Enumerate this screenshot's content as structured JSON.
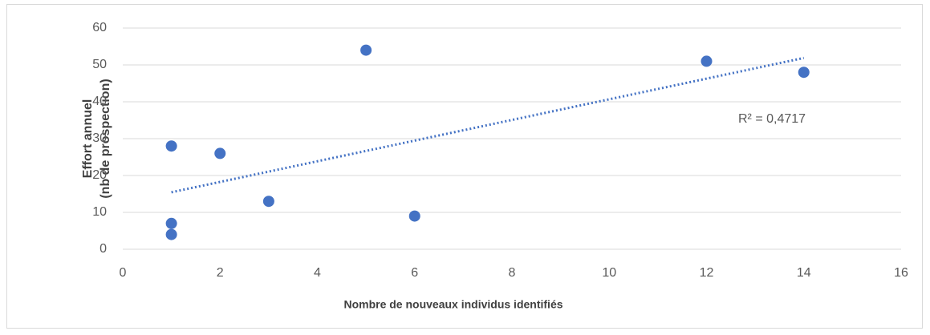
{
  "chart_data": {
    "type": "scatter",
    "x": [
      1,
      1,
      1,
      2,
      3,
      5,
      6,
      12,
      14
    ],
    "values": [
      28,
      7,
      4,
      26,
      13,
      54,
      9,
      51,
      48
    ],
    "color": "#4472c4",
    "xlim": [
      0,
      16
    ],
    "xticks": [
      0,
      2,
      4,
      6,
      8,
      10,
      12,
      14,
      16
    ],
    "ylim": [
      0,
      60
    ],
    "yticks": [
      0,
      10,
      20,
      30,
      40,
      50,
      60
    ],
    "grid": true,
    "trendline": "linear",
    "annotation": "R² = 0,4717",
    "xlabel": "Nombre de nouveaux individus identifiés",
    "ylabel": [
      "Effort annuel",
      "(nb de prospection)"
    ]
  }
}
